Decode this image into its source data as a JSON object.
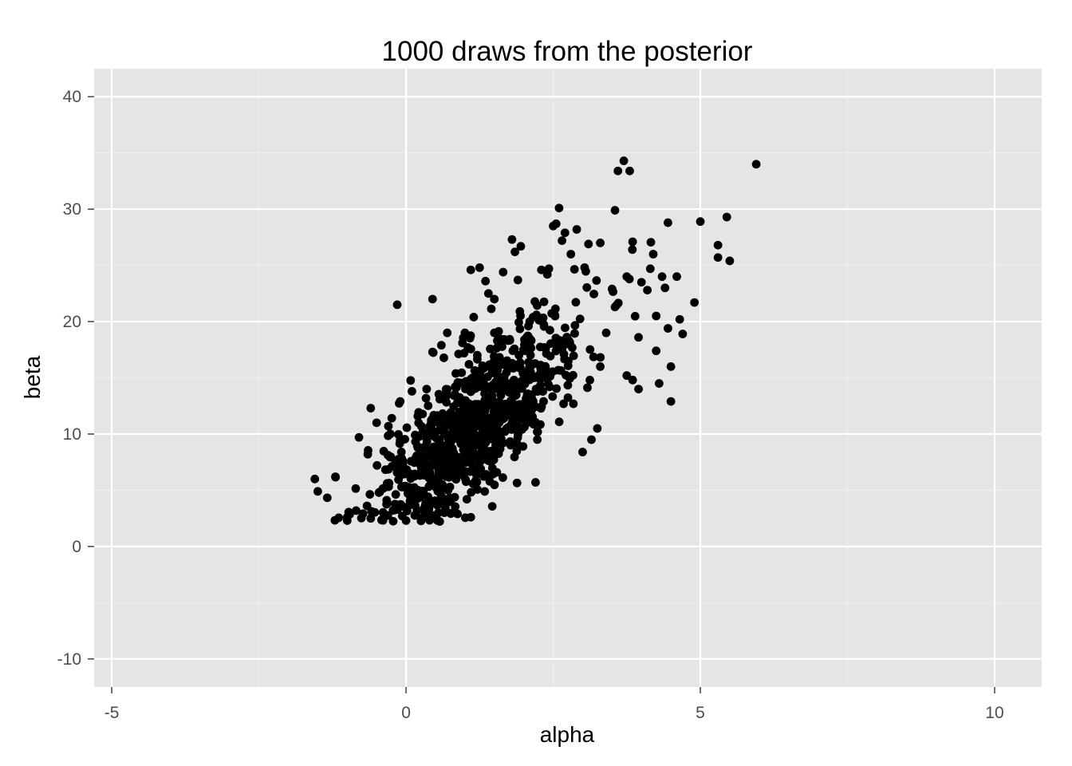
{
  "chart_data": {
    "type": "scatter",
    "title": "1000 draws from the posterior",
    "xlabel": "alpha",
    "ylabel": "beta",
    "xlim": [
      -5.3,
      10.8
    ],
    "ylim": [
      -12.5,
      42.5
    ],
    "x_ticks": [
      -5,
      0,
      5,
      10
    ],
    "y_ticks": [
      -10,
      0,
      10,
      20,
      30,
      40
    ],
    "x_tick_labels": [
      "-5",
      "0",
      "5",
      "10"
    ],
    "y_tick_labels": [
      "-10",
      "0",
      "10",
      "20",
      "30",
      "40"
    ],
    "grid": true,
    "legend": "none",
    "point_color": "#000000",
    "panel_color": "#e5e5e5",
    "n_points": 1000,
    "points_described": "1000 draws; 88 outlying/representative points listed exactly, remaining draws densely concentrated around alpha≈1, beta≈9 with positive correlation (r≈0.7)",
    "points": [
      [
        -1.55,
        6.0
      ],
      [
        -1.5,
        4.9
      ],
      [
        -1.2,
        6.2
      ],
      [
        -1.0,
        2.3
      ],
      [
        -1.0,
        2.6
      ],
      [
        -0.8,
        9.7
      ],
      [
        -0.6,
        12.3
      ],
      [
        -0.5,
        11.0
      ],
      [
        -0.3,
        10.7
      ],
      [
        -0.15,
        21.5
      ],
      [
        -0.1,
        12.9
      ],
      [
        -0.6,
        2.5
      ],
      [
        0.0,
        2.3
      ],
      [
        0.1,
        13.8
      ],
      [
        0.35,
        14.0
      ],
      [
        0.45,
        22.0
      ],
      [
        0.45,
        17.3
      ],
      [
        0.6,
        17.9
      ],
      [
        0.65,
        3.0
      ],
      [
        0.7,
        19.0
      ],
      [
        1.0,
        19.0
      ],
      [
        1.05,
        17.7
      ],
      [
        1.1,
        24.6
      ],
      [
        1.1,
        2.6
      ],
      [
        1.15,
        20.4
      ],
      [
        1.25,
        24.8
      ],
      [
        1.35,
        23.6
      ],
      [
        1.4,
        22.5
      ],
      [
        1.5,
        22.0
      ],
      [
        1.5,
        19.0
      ],
      [
        1.65,
        24.4
      ],
      [
        1.8,
        27.3
      ],
      [
        1.85,
        26.2
      ],
      [
        1.9,
        23.7
      ],
      [
        1.95,
        26.7
      ],
      [
        2.1,
        20.0
      ],
      [
        2.2,
        5.7
      ],
      [
        2.3,
        24.6
      ],
      [
        2.4,
        24.2
      ],
      [
        2.5,
        28.5
      ],
      [
        2.55,
        28.7
      ],
      [
        2.6,
        30.1
      ],
      [
        2.65,
        27.2
      ],
      [
        2.7,
        27.9
      ],
      [
        2.8,
        26.0
      ],
      [
        2.9,
        28.2
      ],
      [
        3.1,
        26.9
      ],
      [
        3.3,
        27.0
      ],
      [
        3.55,
        29.9
      ],
      [
        3.6,
        33.4
      ],
      [
        3.7,
        34.3
      ],
      [
        3.8,
        33.4
      ],
      [
        3.85,
        27.1
      ],
      [
        3.0,
        8.4
      ],
      [
        3.15,
        9.5
      ],
      [
        3.25,
        10.5
      ],
      [
        3.3,
        16.0
      ],
      [
        3.4,
        19.0
      ],
      [
        3.5,
        22.9
      ],
      [
        3.55,
        21.3
      ],
      [
        3.75,
        24.0
      ],
      [
        3.75,
        15.2
      ],
      [
        3.85,
        14.8
      ],
      [
        3.95,
        14.0
      ],
      [
        3.95,
        18.6
      ],
      [
        4.0,
        23.5
      ],
      [
        4.1,
        22.8
      ],
      [
        4.15,
        24.7
      ],
      [
        4.2,
        26.0
      ],
      [
        4.25,
        20.5
      ],
      [
        4.25,
        17.4
      ],
      [
        4.3,
        14.5
      ],
      [
        4.35,
        24.0
      ],
      [
        4.4,
        23.0
      ],
      [
        4.45,
        19.4
      ],
      [
        4.45,
        28.8
      ],
      [
        4.5,
        16.0
      ],
      [
        4.5,
        12.9
      ],
      [
        4.6,
        24.0
      ],
      [
        4.65,
        20.2
      ],
      [
        4.7,
        18.9
      ],
      [
        4.9,
        21.7
      ],
      [
        5.0,
        28.9
      ],
      [
        5.3,
        25.7
      ],
      [
        5.3,
        26.8
      ],
      [
        5.45,
        29.3
      ],
      [
        5.5,
        25.4
      ],
      [
        5.95,
        34.0
      ]
    ]
  }
}
